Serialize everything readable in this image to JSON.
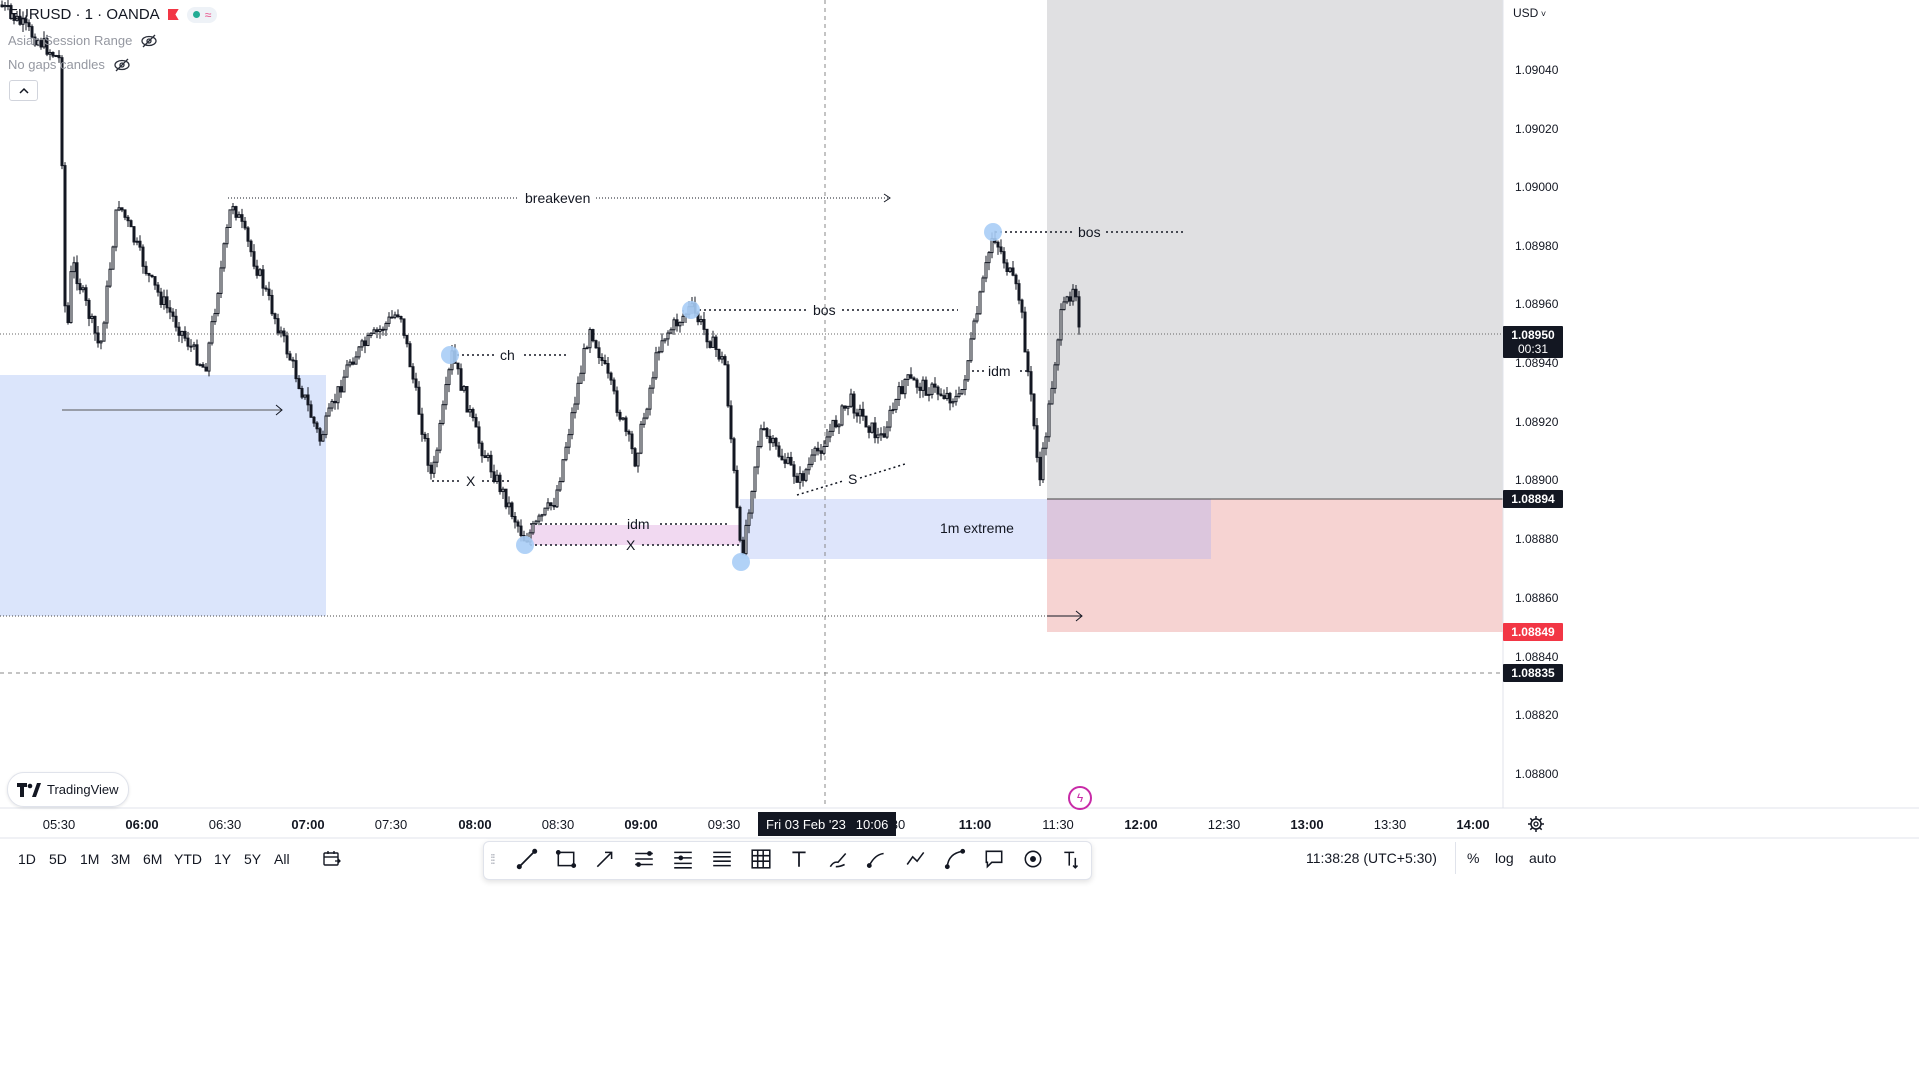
{
  "symbol": {
    "title": "EURUSD · 1 · OANDA",
    "status_colors": {
      "flag": "#f23645",
      "dot": "#22ab94",
      "wave": "#f7a1c4"
    }
  },
  "indicators": [
    {
      "name": "Asian Session Range",
      "icon": "eye-off-icon"
    },
    {
      "name": "No gaps candles",
      "icon": "eye-off-icon"
    }
  ],
  "currency_selector": "USD",
  "price_axis": {
    "ticks": [
      "1.09040",
      "1.09020",
      "1.09000",
      "1.08980",
      "1.08960",
      "1.08940",
      "1.08920",
      "1.08900",
      "1.08880",
      "1.08860",
      "1.08840",
      "1.08820",
      "1.08800"
    ],
    "current_price": "1.08950",
    "countdown": "00:31",
    "label_high": "1.08894",
    "label_low": "1.08849",
    "label_cursor": "1.08835"
  },
  "time_axis": {
    "ticks": [
      {
        "label": "05:30",
        "bold": false
      },
      {
        "label": "06:00",
        "bold": true
      },
      {
        "label": "06:30",
        "bold": false
      },
      {
        "label": "07:00",
        "bold": true
      },
      {
        "label": "07:30",
        "bold": false
      },
      {
        "label": "08:00",
        "bold": true
      },
      {
        "label": "08:30",
        "bold": false
      },
      {
        "label": "09:00",
        "bold": true
      },
      {
        "label": "09:30",
        "bold": false
      },
      {
        "label": "30",
        "bold": false
      },
      {
        "label": "11:00",
        "bold": true
      },
      {
        "label": "11:30",
        "bold": false
      },
      {
        "label": "12:00",
        "bold": true
      },
      {
        "label": "12:30",
        "bold": false
      },
      {
        "label": "13:00",
        "bold": true
      },
      {
        "label": "13:30",
        "bold": false
      },
      {
        "label": "14:00",
        "bold": true
      }
    ],
    "crosshair_date": "Fri 03 Feb '23",
    "crosshair_time": "10:06"
  },
  "annotations": {
    "breakeven": "breakeven",
    "ch": "ch",
    "x1": "X",
    "idm1": "idm",
    "x2": "X",
    "bos1": "bos",
    "bos2": "bos",
    "idm2": "idm",
    "s": "S",
    "extreme": "1m extreme"
  },
  "branding": {
    "logo_text": "TradingView"
  },
  "timeframes": [
    "1D",
    "5D",
    "1M",
    "3M",
    "6M",
    "YTD",
    "1Y",
    "5Y",
    "All"
  ],
  "drawing_tools": [
    "trend-line-icon",
    "rectangle-icon",
    "arrow-icon",
    "fib-retracement-icon",
    "fib-channel-icon",
    "horizontal-lines-icon",
    "grid-icon",
    "text-icon",
    "brush-icon",
    "path-icon",
    "polyline-icon",
    "curve-icon",
    "callout-icon",
    "measure-icon",
    "anchored-text-icon"
  ],
  "status_bar": {
    "clock": "11:38:28 (UTC+5:30)",
    "percent": "%",
    "log": "log",
    "auto": "auto"
  },
  "colors": {
    "blue_zone": "#dbe5fb",
    "pink_zone": "#f6d3d2",
    "gray_zone": "#e0e0e2",
    "idm_zone": "#f0d8f0",
    "pivot": "#a9cdf6",
    "red_label": "#f23645",
    "dark_label": "#131722"
  }
}
